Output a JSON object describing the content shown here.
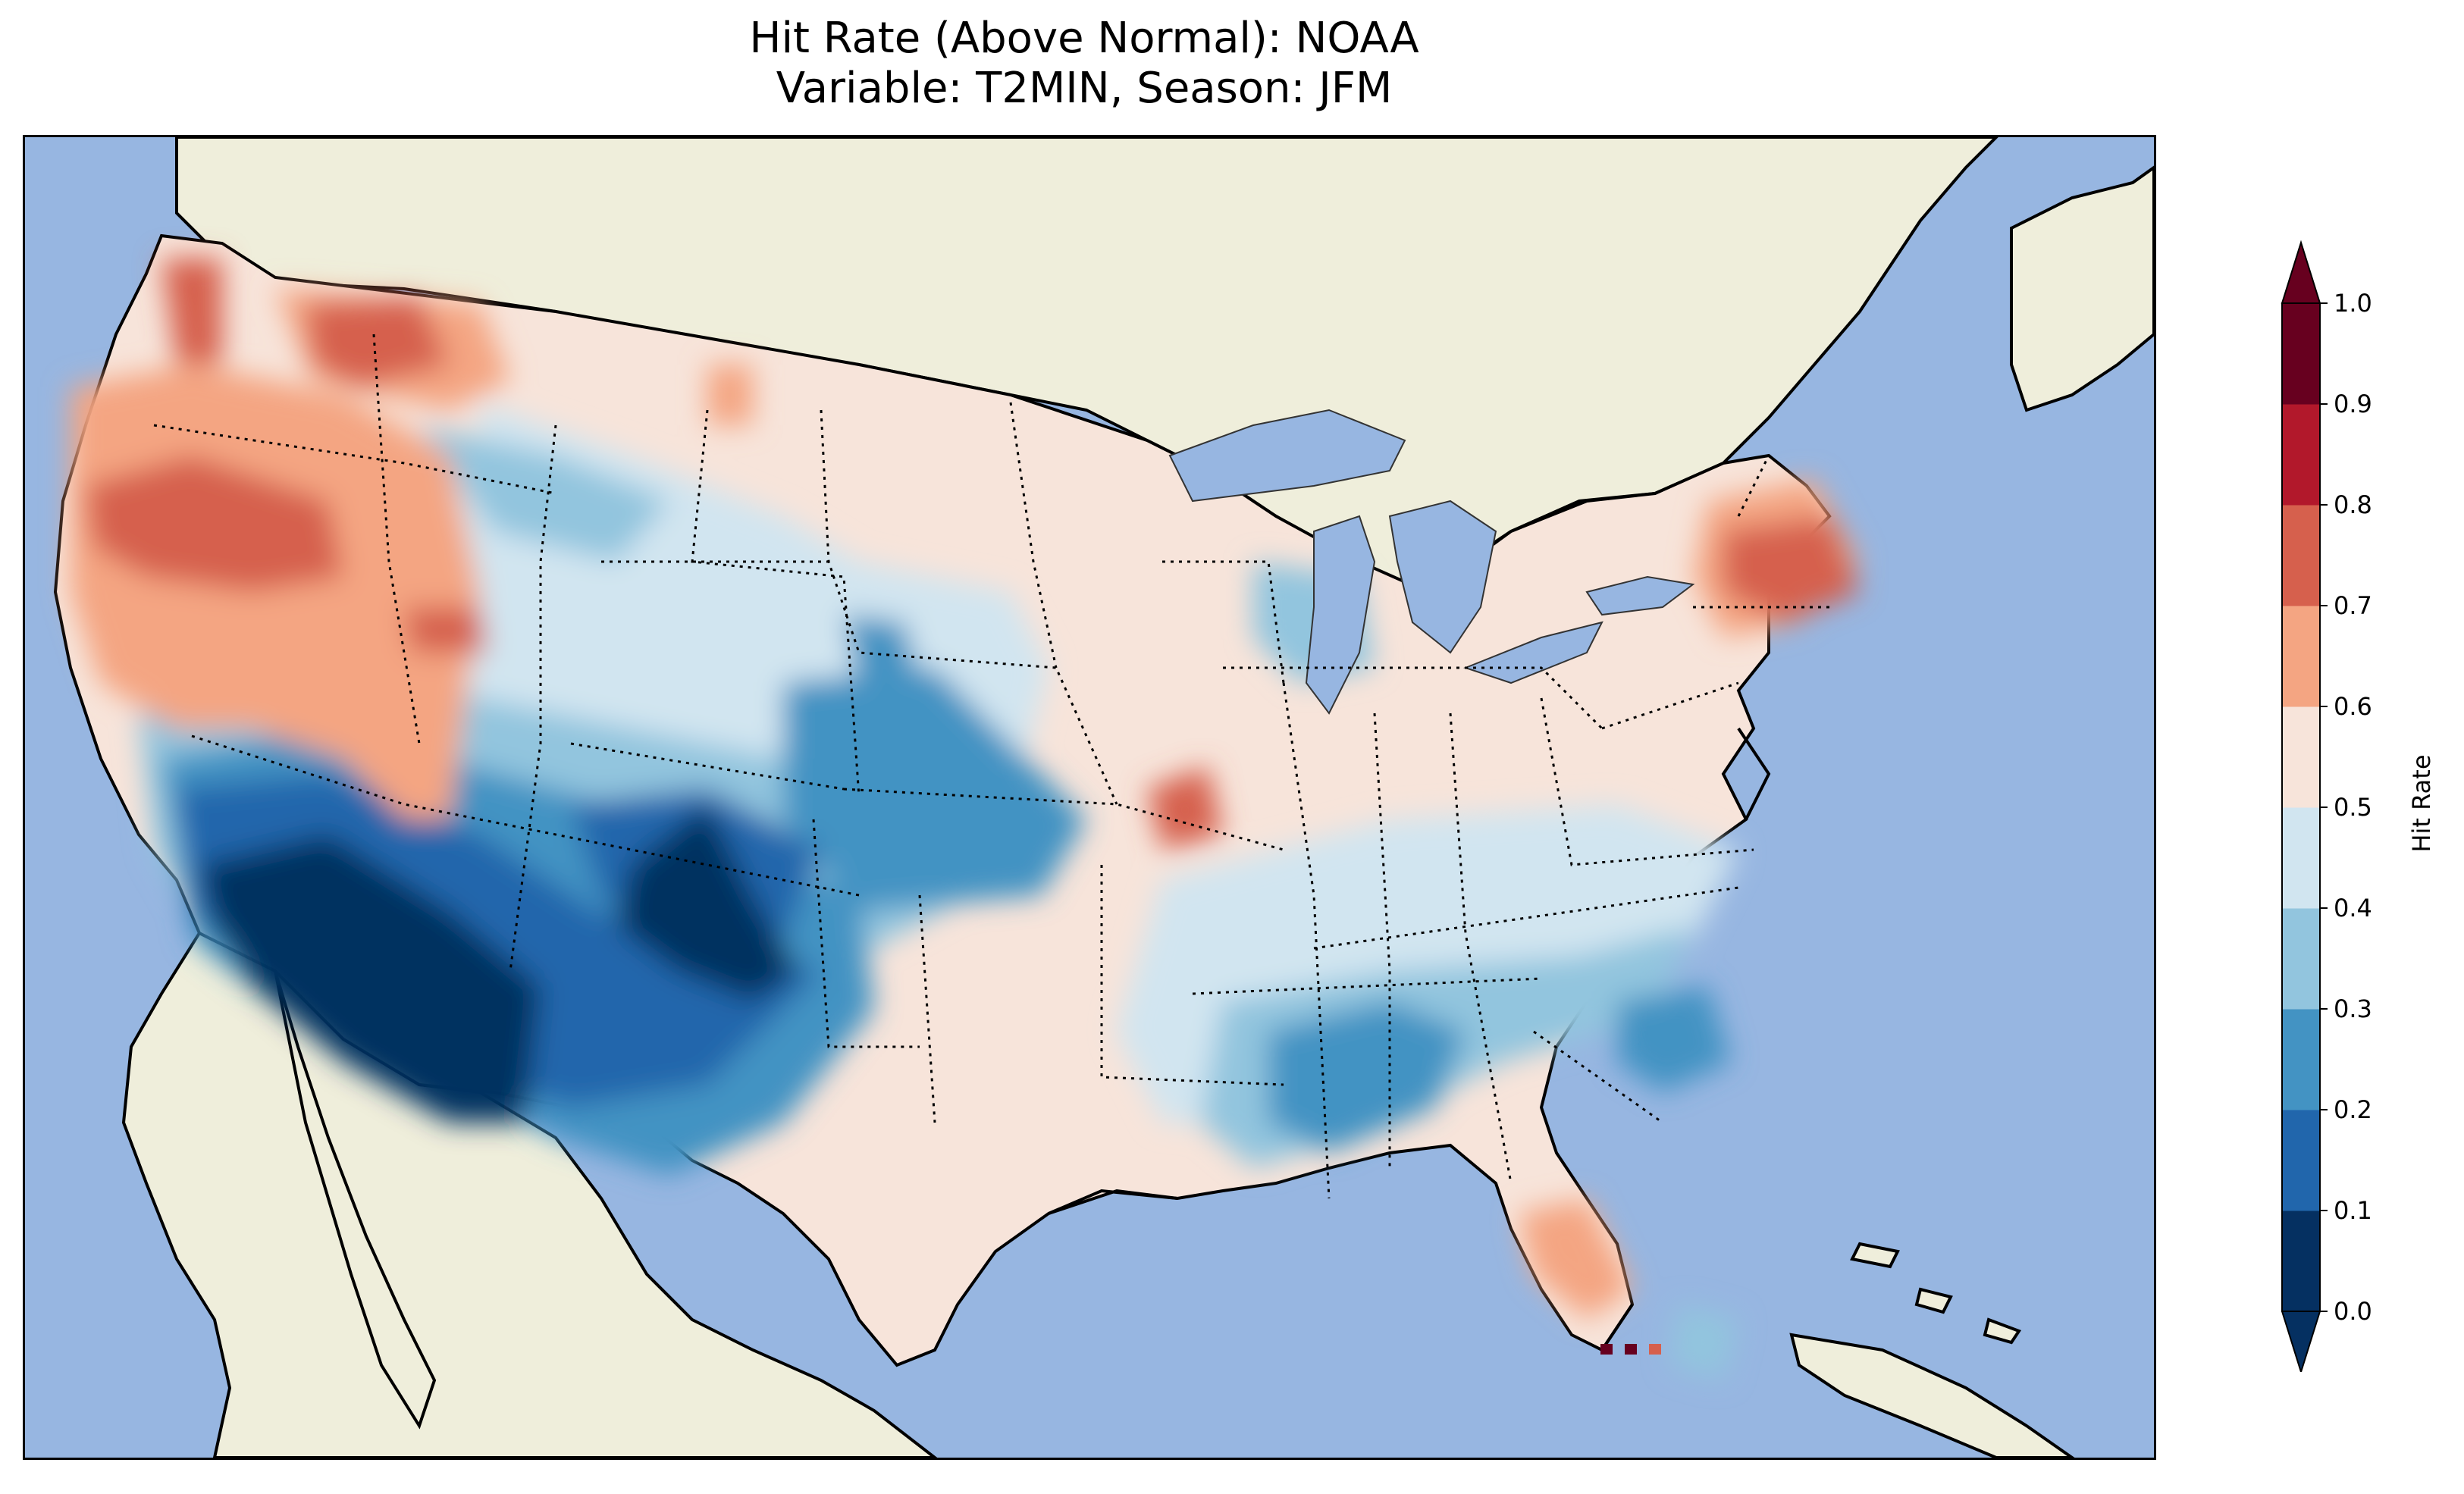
{
  "title": {
    "line1": "Hit Rate (Above Normal): NOAA",
    "line2": "Variable: T2MIN, Season: JFM"
  },
  "map": {
    "region": "Contiguous United States",
    "colors": {
      "ocean": "#97b6e1",
      "land": "#efeedb",
      "coastline": "#000000",
      "borders": "#000000"
    }
  },
  "colorbar": {
    "label": "Hit Rate",
    "colormap": "RdBu_r",
    "ticks": [
      "0.0",
      "0.1",
      "0.2",
      "0.3",
      "0.4",
      "0.5",
      "0.6",
      "0.7",
      "0.8",
      "0.9",
      "1.0"
    ],
    "bins": [
      {
        "range": [
          0.0,
          0.1
        ],
        "color": "#053061"
      },
      {
        "range": [
          0.1,
          0.2
        ],
        "color": "#2166ac"
      },
      {
        "range": [
          0.2,
          0.3
        ],
        "color": "#4393c3"
      },
      {
        "range": [
          0.3,
          0.4
        ],
        "color": "#92c5de"
      },
      {
        "range": [
          0.4,
          0.5
        ],
        "color": "#d1e5f0"
      },
      {
        "range": [
          0.5,
          0.6
        ],
        "color": "#f7e4da"
      },
      {
        "range": [
          0.6,
          0.7
        ],
        "color": "#f4a582"
      },
      {
        "range": [
          0.7,
          0.8
        ],
        "color": "#d6604d"
      },
      {
        "range": [
          0.8,
          0.9
        ],
        "color": "#b2182b"
      },
      {
        "range": [
          0.9,
          1.0
        ],
        "color": "#67001f"
      }
    ],
    "extend": "both"
  }
}
